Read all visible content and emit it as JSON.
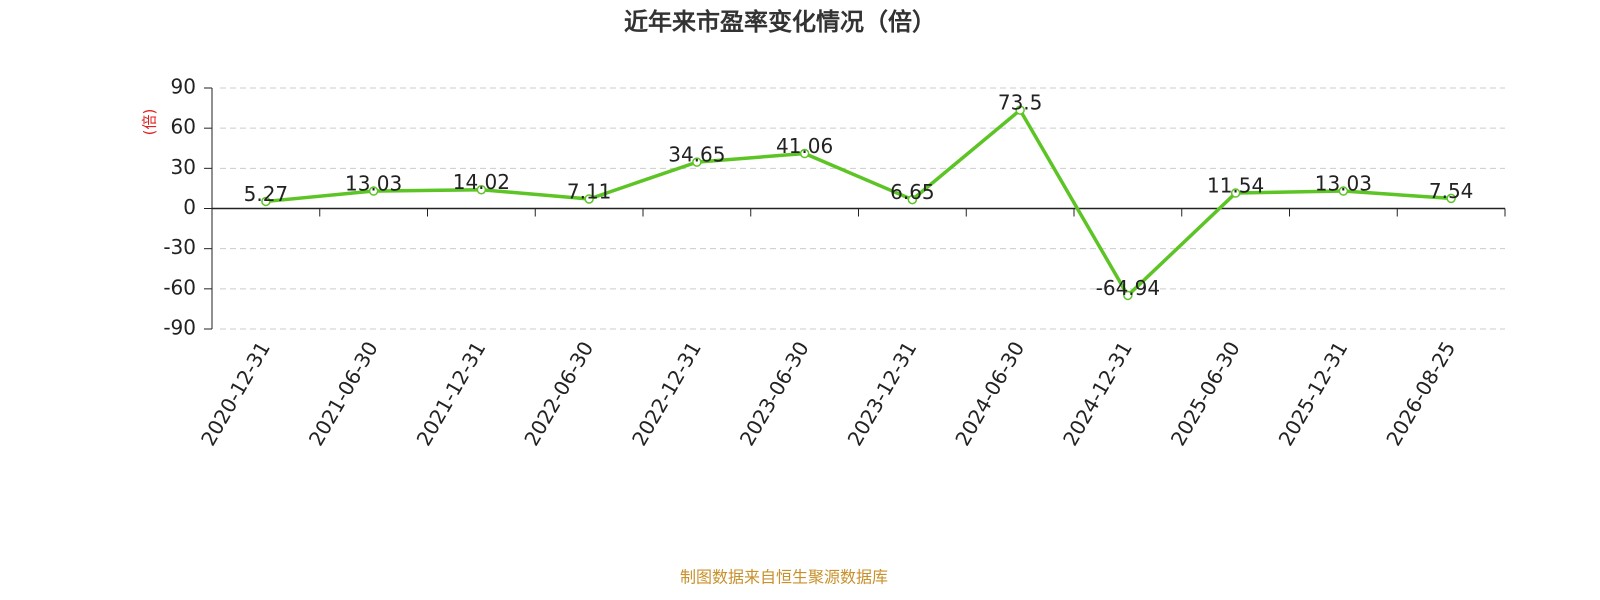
{
  "chart_data": {
    "type": "line",
    "title": "近年来市盈率变化情况（倍）",
    "y_label": "(倍)",
    "categories": [
      "2020-12-31",
      "2021-06-30",
      "2021-12-31",
      "2022-06-30",
      "2022-12-31",
      "2023-06-30",
      "2023-12-31",
      "2024-06-30",
      "2024-12-31",
      "2025-06-30",
      "2025-12-31",
      "2026-08-25"
    ],
    "values": [
      5.27,
      13.03,
      14.02,
      7.11,
      34.65,
      41.06,
      6.65,
      73.5,
      -64.94,
      11.54,
      13.03,
      7.54
    ],
    "color": "#5cc424",
    "ylim": [
      -90,
      90
    ],
    "yticks": [
      -90,
      -60,
      -30,
      0,
      30,
      60,
      90
    ],
    "grid": true,
    "source": "制图数据来自恒生聚源数据库"
  }
}
